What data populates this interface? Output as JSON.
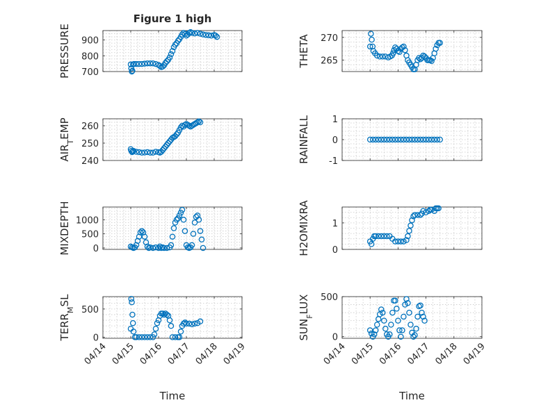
{
  "chart_data": [
    {
      "type": "scatter",
      "ylabel": "PRESSURE",
      "title": "Figure 1 high",
      "ylim": [
        700,
        960
      ],
      "yticks": [
        700,
        800,
        900
      ],
      "ytick_labels": [
        "700",
        "800",
        "900"
      ],
      "marker": "circle",
      "color": "#0072bd",
      "grid": true,
      "points": [
        [
          0.0,
          745
        ],
        [
          0.02,
          720
        ],
        [
          0.04,
          700
        ],
        [
          0.06,
          705
        ],
        [
          0.08,
          745
        ],
        [
          0.12,
          748
        ],
        [
          0.2,
          748
        ],
        [
          0.3,
          748
        ],
        [
          0.4,
          748
        ],
        [
          0.5,
          750
        ],
        [
          0.6,
          752
        ],
        [
          0.7,
          752
        ],
        [
          0.8,
          752
        ],
        [
          0.9,
          748
        ],
        [
          1.0,
          742
        ],
        [
          1.05,
          735
        ],
        [
          1.1,
          728
        ],
        [
          1.15,
          732
        ],
        [
          1.2,
          740
        ],
        [
          1.25,
          755
        ],
        [
          1.3,
          765
        ],
        [
          1.35,
          775
        ],
        [
          1.4,
          790
        ],
        [
          1.45,
          810
        ],
        [
          1.5,
          830
        ],
        [
          1.55,
          855
        ],
        [
          1.6,
          870
        ],
        [
          1.65,
          880
        ],
        [
          1.7,
          895
        ],
        [
          1.75,
          905
        ],
        [
          1.8,
          920
        ],
        [
          1.85,
          935
        ],
        [
          1.9,
          945
        ],
        [
          1.95,
          938
        ],
        [
          2.0,
          928
        ],
        [
          2.05,
          935
        ],
        [
          2.1,
          945
        ],
        [
          2.15,
          950
        ],
        [
          2.2,
          945
        ],
        [
          2.3,
          942
        ],
        [
          2.4,
          945
        ],
        [
          2.5,
          940
        ],
        [
          2.6,
          935
        ],
        [
          2.7,
          932
        ],
        [
          2.8,
          930
        ],
        [
          2.9,
          928
        ],
        [
          3.0,
          932
        ],
        [
          3.05,
          928
        ],
        [
          3.1,
          920
        ]
      ]
    },
    {
      "type": "scatter",
      "ylabel": "THETA",
      "ylim": [
        262.5,
        271.5
      ],
      "yticks": [
        265,
        270
      ],
      "ytick_labels": [
        "265",
        "270"
      ],
      "marker": "circle",
      "color": "#0072bd",
      "grid": true,
      "points": [
        [
          0.0,
          268.0
        ],
        [
          0.03,
          270.8
        ],
        [
          0.06,
          269.5
        ],
        [
          0.09,
          268.0
        ],
        [
          0.12,
          267.0
        ],
        [
          0.18,
          266.5
        ],
        [
          0.25,
          266.0
        ],
        [
          0.35,
          265.8
        ],
        [
          0.45,
          265.8
        ],
        [
          0.55,
          265.8
        ],
        [
          0.65,
          265.6
        ],
        [
          0.72,
          265.8
        ],
        [
          0.78,
          266.0
        ],
        [
          0.82,
          266.5
        ],
        [
          0.86,
          267.2
        ],
        [
          0.9,
          267.8
        ],
        [
          0.95,
          267.5
        ],
        [
          1.0,
          267.0
        ],
        [
          1.05,
          266.8
        ],
        [
          1.1,
          267.5
        ],
        [
          1.15,
          267.8
        ],
        [
          1.2,
          268.0
        ],
        [
          1.25,
          267.2
        ],
        [
          1.3,
          266.0
        ],
        [
          1.35,
          265.0
        ],
        [
          1.4,
          264.5
        ],
        [
          1.45,
          264.0
        ],
        [
          1.5,
          263.5
        ],
        [
          1.55,
          263.0
        ],
        [
          1.6,
          263.0
        ],
        [
          1.65,
          264.0
        ],
        [
          1.7,
          265.0
        ],
        [
          1.75,
          265.5
        ],
        [
          1.8,
          265.2
        ],
        [
          1.85,
          265.5
        ],
        [
          1.9,
          266.0
        ],
        [
          1.95,
          265.8
        ],
        [
          2.0,
          265.5
        ],
        [
          2.05,
          265.0
        ],
        [
          2.1,
          265.0
        ],
        [
          2.15,
          265.0
        ],
        [
          2.2,
          264.8
        ],
        [
          2.25,
          265.5
        ],
        [
          2.3,
          266.5
        ],
        [
          2.35,
          267.5
        ],
        [
          2.4,
          268.3
        ],
        [
          2.45,
          268.8
        ],
        [
          2.5,
          268.8
        ]
      ]
    },
    {
      "type": "scatter",
      "ylabel": "AIR_TEMP",
      "ylim": [
        240,
        264
      ],
      "yticks": [
        240,
        250,
        260
      ],
      "ytick_labels": [
        "240",
        "250",
        "260"
      ],
      "marker": "circle",
      "color": "#0072bd",
      "grid": true,
      "points": [
        [
          0.0,
          246.5
        ],
        [
          0.02,
          245.5
        ],
        [
          0.05,
          244.8
        ],
        [
          0.08,
          245.2
        ],
        [
          0.1,
          245.5
        ],
        [
          0.2,
          245.0
        ],
        [
          0.3,
          244.8
        ],
        [
          0.4,
          244.5
        ],
        [
          0.5,
          244.6
        ],
        [
          0.6,
          244.8
        ],
        [
          0.7,
          244.5
        ],
        [
          0.8,
          244.5
        ],
        [
          0.9,
          245.0
        ],
        [
          1.0,
          244.8
        ],
        [
          1.05,
          244.5
        ],
        [
          1.1,
          245.0
        ],
        [
          1.15,
          246.0
        ],
        [
          1.2,
          247.0
        ],
        [
          1.25,
          248.0
        ],
        [
          1.3,
          249.0
        ],
        [
          1.35,
          250.0
        ],
        [
          1.4,
          251.0
        ],
        [
          1.45,
          252.0
        ],
        [
          1.5,
          253.0
        ],
        [
          1.55,
          253.5
        ],
        [
          1.6,
          254.0
        ],
        [
          1.65,
          255.0
        ],
        [
          1.7,
          256.0
        ],
        [
          1.75,
          257.5
        ],
        [
          1.8,
          259.0
        ],
        [
          1.85,
          260.0
        ],
        [
          1.9,
          259.5
        ],
        [
          1.95,
          260.5
        ],
        [
          2.0,
          261.0
        ],
        [
          2.05,
          260.5
        ],
        [
          2.1,
          260.0
        ],
        [
          2.15,
          259.5
        ],
        [
          2.2,
          260.0
        ],
        [
          2.25,
          260.5
        ],
        [
          2.3,
          261.0
        ],
        [
          2.35,
          261.5
        ],
        [
          2.4,
          262.0
        ],
        [
          2.45,
          262.5
        ],
        [
          2.5,
          262.0
        ]
      ]
    },
    {
      "type": "scatter",
      "ylabel": "RAINFALL",
      "ylim": [
        -1,
        1
      ],
      "yticks": [
        -1,
        0,
        1
      ],
      "ytick_labels": [
        "-1",
        "0",
        "1"
      ],
      "marker": "circle",
      "color": "#0072bd",
      "grid": true,
      "points": [
        [
          0.0,
          0
        ],
        [
          0.1,
          0
        ],
        [
          0.2,
          0
        ],
        [
          0.3,
          0
        ],
        [
          0.4,
          0
        ],
        [
          0.5,
          0
        ],
        [
          0.6,
          0
        ],
        [
          0.7,
          0
        ],
        [
          0.8,
          0
        ],
        [
          0.9,
          0
        ],
        [
          1.0,
          0
        ],
        [
          1.1,
          0
        ],
        [
          1.2,
          0
        ],
        [
          1.3,
          0
        ],
        [
          1.4,
          0
        ],
        [
          1.5,
          0
        ],
        [
          1.6,
          0
        ],
        [
          1.7,
          0
        ],
        [
          1.8,
          0
        ],
        [
          1.9,
          0
        ],
        [
          2.0,
          0
        ],
        [
          2.1,
          0
        ],
        [
          2.2,
          0
        ],
        [
          2.3,
          0
        ],
        [
          2.4,
          0
        ],
        [
          2.5,
          0
        ]
      ]
    },
    {
      "type": "scatter",
      "ylabel": "MIXDEPTH",
      "ylim": [
        -50,
        1450
      ],
      "yticks": [
        0,
        500,
        1000
      ],
      "ytick_labels": [
        "0",
        "500",
        "1000"
      ],
      "marker": "circle",
      "color": "#0072bd",
      "grid": true,
      "points": [
        [
          0.0,
          50
        ],
        [
          0.05,
          20
        ],
        [
          0.1,
          0
        ],
        [
          0.15,
          20
        ],
        [
          0.2,
          100
        ],
        [
          0.25,
          250
        ],
        [
          0.3,
          400
        ],
        [
          0.35,
          550
        ],
        [
          0.4,
          600
        ],
        [
          0.45,
          550
        ],
        [
          0.5,
          400
        ],
        [
          0.55,
          200
        ],
        [
          0.6,
          50
        ],
        [
          0.65,
          0
        ],
        [
          0.7,
          20
        ],
        [
          0.8,
          0
        ],
        [
          0.9,
          20
        ],
        [
          1.0,
          0
        ],
        [
          1.05,
          50
        ],
        [
          1.1,
          0
        ],
        [
          1.15,
          20
        ],
        [
          1.2,
          0
        ],
        [
          1.3,
          0
        ],
        [
          1.4,
          20
        ],
        [
          1.45,
          100
        ],
        [
          1.5,
          400
        ],
        [
          1.55,
          700
        ],
        [
          1.6,
          900
        ],
        [
          1.65,
          1000
        ],
        [
          1.7,
          1050
        ],
        [
          1.75,
          1150
        ],
        [
          1.8,
          1250
        ],
        [
          1.85,
          1350
        ],
        [
          1.9,
          1000
        ],
        [
          1.95,
          600
        ],
        [
          2.0,
          100
        ],
        [
          2.05,
          20
        ],
        [
          2.1,
          0
        ],
        [
          2.15,
          20
        ],
        [
          2.2,
          100
        ],
        [
          2.25,
          500
        ],
        [
          2.3,
          900
        ],
        [
          2.35,
          1100
        ],
        [
          2.4,
          1150
        ],
        [
          2.45,
          1000
        ],
        [
          2.5,
          600
        ],
        [
          2.55,
          300
        ],
        [
          2.6,
          0
        ]
      ]
    },
    {
      "type": "scatter",
      "ylabel": "H2OMIXRA",
      "ylim": [
        0,
        1.6
      ],
      "yticks": [
        0,
        1
      ],
      "ytick_labels": [
        "0",
        "1"
      ],
      "marker": "circle",
      "color": "#0072bd",
      "grid": true,
      "points": [
        [
          0.0,
          0.3
        ],
        [
          0.05,
          0.2
        ],
        [
          0.1,
          0.4
        ],
        [
          0.15,
          0.5
        ],
        [
          0.2,
          0.5
        ],
        [
          0.3,
          0.5
        ],
        [
          0.4,
          0.5
        ],
        [
          0.5,
          0.5
        ],
        [
          0.6,
          0.5
        ],
        [
          0.7,
          0.5
        ],
        [
          0.8,
          0.4
        ],
        [
          0.9,
          0.3
        ],
        [
          1.0,
          0.3
        ],
        [
          1.1,
          0.3
        ],
        [
          1.2,
          0.3
        ],
        [
          1.3,
          0.35
        ],
        [
          1.35,
          0.5
        ],
        [
          1.4,
          0.7
        ],
        [
          1.45,
          0.9
        ],
        [
          1.5,
          1.1
        ],
        [
          1.55,
          1.25
        ],
        [
          1.6,
          1.3
        ],
        [
          1.7,
          1.3
        ],
        [
          1.8,
          1.3
        ],
        [
          1.85,
          1.35
        ],
        [
          1.9,
          1.45
        ],
        [
          2.0,
          1.4
        ],
        [
          2.1,
          1.45
        ],
        [
          2.15,
          1.5
        ],
        [
          2.2,
          1.5
        ],
        [
          2.3,
          1.45
        ],
        [
          2.35,
          1.55
        ],
        [
          2.4,
          1.55
        ],
        [
          2.45,
          1.55
        ]
      ]
    },
    {
      "type": "scatter",
      "ylabel": "TERR_MSL",
      "ylim": [
        -20,
        720
      ],
      "yticks": [
        0,
        500
      ],
      "ytick_labels": [
        "0",
        "500"
      ],
      "marker": "circle",
      "color": "#0072bd",
      "grid": true,
      "points": [
        [
          0.0,
          150
        ],
        [
          0.02,
          680
        ],
        [
          0.04,
          620
        ],
        [
          0.06,
          400
        ],
        [
          0.08,
          250
        ],
        [
          0.1,
          100
        ],
        [
          0.15,
          0
        ],
        [
          0.2,
          0
        ],
        [
          0.3,
          0
        ],
        [
          0.4,
          0
        ],
        [
          0.5,
          0
        ],
        [
          0.6,
          0
        ],
        [
          0.7,
          0
        ],
        [
          0.8,
          0
        ],
        [
          0.85,
          50
        ],
        [
          0.9,
          150
        ],
        [
          0.95,
          250
        ],
        [
          1.0,
          300
        ],
        [
          1.05,
          380
        ],
        [
          1.1,
          420
        ],
        [
          1.15,
          420
        ],
        [
          1.2,
          400
        ],
        [
          1.25,
          420
        ],
        [
          1.3,
          400
        ],
        [
          1.35,
          380
        ],
        [
          1.4,
          300
        ],
        [
          1.45,
          200
        ],
        [
          1.5,
          0
        ],
        [
          1.6,
          0
        ],
        [
          1.7,
          0
        ],
        [
          1.75,
          0
        ],
        [
          1.8,
          100
        ],
        [
          1.85,
          200
        ],
        [
          1.9,
          240
        ],
        [
          1.95,
          260
        ],
        [
          2.0,
          240
        ],
        [
          2.1,
          240
        ],
        [
          2.2,
          230
        ],
        [
          2.3,
          240
        ],
        [
          2.4,
          250
        ],
        [
          2.5,
          280
        ]
      ]
    },
    {
      "type": "scatter",
      "ylabel": "SUN_FLUX",
      "ylim": [
        -20,
        500
      ],
      "yticks": [
        0,
        500
      ],
      "ytick_labels": [
        "0",
        "500"
      ],
      "marker": "circle",
      "color": "#0072bd",
      "grid": true,
      "points": [
        [
          0.0,
          80
        ],
        [
          0.05,
          40
        ],
        [
          0.1,
          0
        ],
        [
          0.15,
          30
        ],
        [
          0.2,
          80
        ],
        [
          0.25,
          150
        ],
        [
          0.3,
          220
        ],
        [
          0.35,
          280
        ],
        [
          0.4,
          340
        ],
        [
          0.45,
          300
        ],
        [
          0.5,
          200
        ],
        [
          0.55,
          100
        ],
        [
          0.6,
          30
        ],
        [
          0.65,
          0
        ],
        [
          0.7,
          30
        ],
        [
          0.75,
          150
        ],
        [
          0.8,
          300
        ],
        [
          0.85,
          450
        ],
        [
          0.9,
          450
        ],
        [
          0.95,
          350
        ],
        [
          1.0,
          200
        ],
        [
          1.05,
          80
        ],
        [
          1.1,
          0
        ],
        [
          1.15,
          80
        ],
        [
          1.2,
          250
        ],
        [
          1.25,
          400
        ],
        [
          1.3,
          470
        ],
        [
          1.35,
          420
        ],
        [
          1.4,
          300
        ],
        [
          1.45,
          150
        ],
        [
          1.5,
          50
        ],
        [
          1.55,
          0
        ],
        [
          1.6,
          20
        ],
        [
          1.65,
          100
        ],
        [
          1.7,
          250
        ],
        [
          1.75,
          380
        ],
        [
          1.8,
          390
        ],
        [
          1.85,
          300
        ],
        [
          1.9,
          250
        ],
        [
          1.95,
          200
        ]
      ]
    }
  ],
  "xaxis": {
    "label": "Time",
    "tick_labels": [
      "04/14",
      "04/15",
      "04/16",
      "04/17",
      "04/18",
      "04/19"
    ]
  }
}
